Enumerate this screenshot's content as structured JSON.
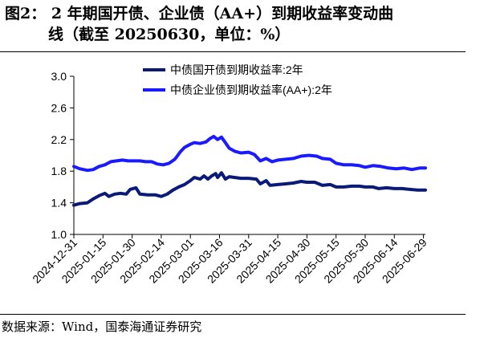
{
  "title": {
    "line1": "图2：  2 年期国开债、企业债（AA+）到期收益率变动曲",
    "line2": "线（截至 20250630，单位：%）"
  },
  "source": "数据来源：Wind，国泰海通证券研究",
  "colors": {
    "series1": "#0a1a78",
    "series2": "#1a1aff",
    "axis": "#000000"
  },
  "chart_data": {
    "type": "line",
    "title": "",
    "xlabel": "",
    "ylabel": "",
    "ylim": [
      1.0,
      3.0
    ],
    "yticks": [
      "1.0",
      "1.4",
      "1.8",
      "2.2",
      "2.6",
      "3.0"
    ],
    "x_ticks": [
      "2024-12-31",
      "2025-01-15",
      "2025-01-30",
      "2025-02-14",
      "2025-03-01",
      "2025-03-16",
      "2025-03-31",
      "2025-04-15",
      "2025-04-30",
      "2025-05-15",
      "2025-05-30",
      "2025-06-14",
      "2025-06-29"
    ],
    "x_range": [
      "2024-12-31",
      "2025-06-30"
    ],
    "legend_position": "top-center",
    "grid": false,
    "series": [
      {
        "name": "中债国开债到期收益率:2年",
        "color": "#0a1a78",
        "points": [
          [
            "2024-12-31",
            1.37
          ],
          [
            "2025-01-03",
            1.39
          ],
          [
            "2025-01-07",
            1.4
          ],
          [
            "2025-01-10",
            1.45
          ],
          [
            "2025-01-13",
            1.49
          ],
          [
            "2025-01-16",
            1.52
          ],
          [
            "2025-01-18",
            1.48
          ],
          [
            "2025-01-21",
            1.51
          ],
          [
            "2025-01-24",
            1.52
          ],
          [
            "2025-01-27",
            1.51
          ],
          [
            "2025-01-29",
            1.57
          ],
          [
            "2025-02-01",
            1.59
          ],
          [
            "2025-02-03",
            1.51
          ],
          [
            "2025-02-07",
            1.5
          ],
          [
            "2025-02-11",
            1.5
          ],
          [
            "2025-02-14",
            1.48
          ],
          [
            "2025-02-17",
            1.51
          ],
          [
            "2025-02-20",
            1.56
          ],
          [
            "2025-02-23",
            1.6
          ],
          [
            "2025-02-26",
            1.63
          ],
          [
            "2025-03-01",
            1.68
          ],
          [
            "2025-03-03",
            1.72
          ],
          [
            "2025-03-06",
            1.7
          ],
          [
            "2025-03-08",
            1.74
          ],
          [
            "2025-03-10",
            1.7
          ],
          [
            "2025-03-12",
            1.74
          ],
          [
            "2025-03-14",
            1.77
          ],
          [
            "2025-03-15",
            1.72
          ],
          [
            "2025-03-17",
            1.78
          ],
          [
            "2025-03-19",
            1.7
          ],
          [
            "2025-03-21",
            1.73
          ],
          [
            "2025-03-24",
            1.72
          ],
          [
            "2025-03-27",
            1.71
          ],
          [
            "2025-03-31",
            1.71
          ],
          [
            "2025-04-04",
            1.7
          ],
          [
            "2025-04-06",
            1.64
          ],
          [
            "2025-04-09",
            1.68
          ],
          [
            "2025-04-11",
            1.62
          ],
          [
            "2025-04-15",
            1.63
          ],
          [
            "2025-04-19",
            1.64
          ],
          [
            "2025-04-23",
            1.65
          ],
          [
            "2025-04-27",
            1.67
          ],
          [
            "2025-04-30",
            1.66
          ],
          [
            "2025-05-04",
            1.66
          ],
          [
            "2025-05-08",
            1.62
          ],
          [
            "2025-05-12",
            1.63
          ],
          [
            "2025-05-15",
            1.6
          ],
          [
            "2025-05-19",
            1.6
          ],
          [
            "2025-05-23",
            1.61
          ],
          [
            "2025-05-27",
            1.61
          ],
          [
            "2025-05-30",
            1.6
          ],
          [
            "2025-06-03",
            1.6
          ],
          [
            "2025-06-06",
            1.58
          ],
          [
            "2025-06-10",
            1.59
          ],
          [
            "2025-06-14",
            1.58
          ],
          [
            "2025-06-18",
            1.58
          ],
          [
            "2025-06-22",
            1.57
          ],
          [
            "2025-06-26",
            1.56
          ],
          [
            "2025-06-30",
            1.56
          ]
        ]
      },
      {
        "name": "中债企业债到期收益率(AA+):2年",
        "color": "#1a1aff",
        "points": [
          [
            "2024-12-31",
            1.86
          ],
          [
            "2025-01-03",
            1.83
          ],
          [
            "2025-01-07",
            1.81
          ],
          [
            "2025-01-10",
            1.82
          ],
          [
            "2025-01-13",
            1.86
          ],
          [
            "2025-01-16",
            1.88
          ],
          [
            "2025-01-19",
            1.92
          ],
          [
            "2025-01-22",
            1.93
          ],
          [
            "2025-01-25",
            1.94
          ],
          [
            "2025-01-28",
            1.93
          ],
          [
            "2025-01-31",
            1.93
          ],
          [
            "2025-02-03",
            1.93
          ],
          [
            "2025-02-06",
            1.92
          ],
          [
            "2025-02-09",
            1.92
          ],
          [
            "2025-02-12",
            1.89
          ],
          [
            "2025-02-15",
            1.88
          ],
          [
            "2025-02-18",
            1.9
          ],
          [
            "2025-02-21",
            1.95
          ],
          [
            "2025-02-24",
            2.05
          ],
          [
            "2025-02-26",
            2.1
          ],
          [
            "2025-03-01",
            2.14
          ],
          [
            "2025-03-03",
            2.16
          ],
          [
            "2025-03-06",
            2.15
          ],
          [
            "2025-03-09",
            2.17
          ],
          [
            "2025-03-11",
            2.21
          ],
          [
            "2025-03-13",
            2.24
          ],
          [
            "2025-03-15",
            2.2
          ],
          [
            "2025-03-17",
            2.23
          ],
          [
            "2025-03-19",
            2.16
          ],
          [
            "2025-03-21",
            2.09
          ],
          [
            "2025-03-24",
            2.05
          ],
          [
            "2025-03-27",
            2.03
          ],
          [
            "2025-03-31",
            2.04
          ],
          [
            "2025-04-03",
            2.01
          ],
          [
            "2025-04-06",
            1.93
          ],
          [
            "2025-04-09",
            1.96
          ],
          [
            "2025-04-12",
            1.92
          ],
          [
            "2025-04-15",
            1.94
          ],
          [
            "2025-04-19",
            1.95
          ],
          [
            "2025-04-23",
            1.96
          ],
          [
            "2025-04-27",
            1.99
          ],
          [
            "2025-05-01",
            2.0
          ],
          [
            "2025-05-05",
            1.99
          ],
          [
            "2025-05-08",
            1.96
          ],
          [
            "2025-05-12",
            1.95
          ],
          [
            "2025-05-15",
            1.9
          ],
          [
            "2025-05-19",
            1.88
          ],
          [
            "2025-05-23",
            1.88
          ],
          [
            "2025-05-27",
            1.87
          ],
          [
            "2025-05-30",
            1.85
          ],
          [
            "2025-06-03",
            1.87
          ],
          [
            "2025-06-07",
            1.86
          ],
          [
            "2025-06-11",
            1.84
          ],
          [
            "2025-06-15",
            1.83
          ],
          [
            "2025-06-19",
            1.84
          ],
          [
            "2025-06-23",
            1.82
          ],
          [
            "2025-06-27",
            1.84
          ],
          [
            "2025-06-30",
            1.84
          ]
        ]
      }
    ]
  }
}
